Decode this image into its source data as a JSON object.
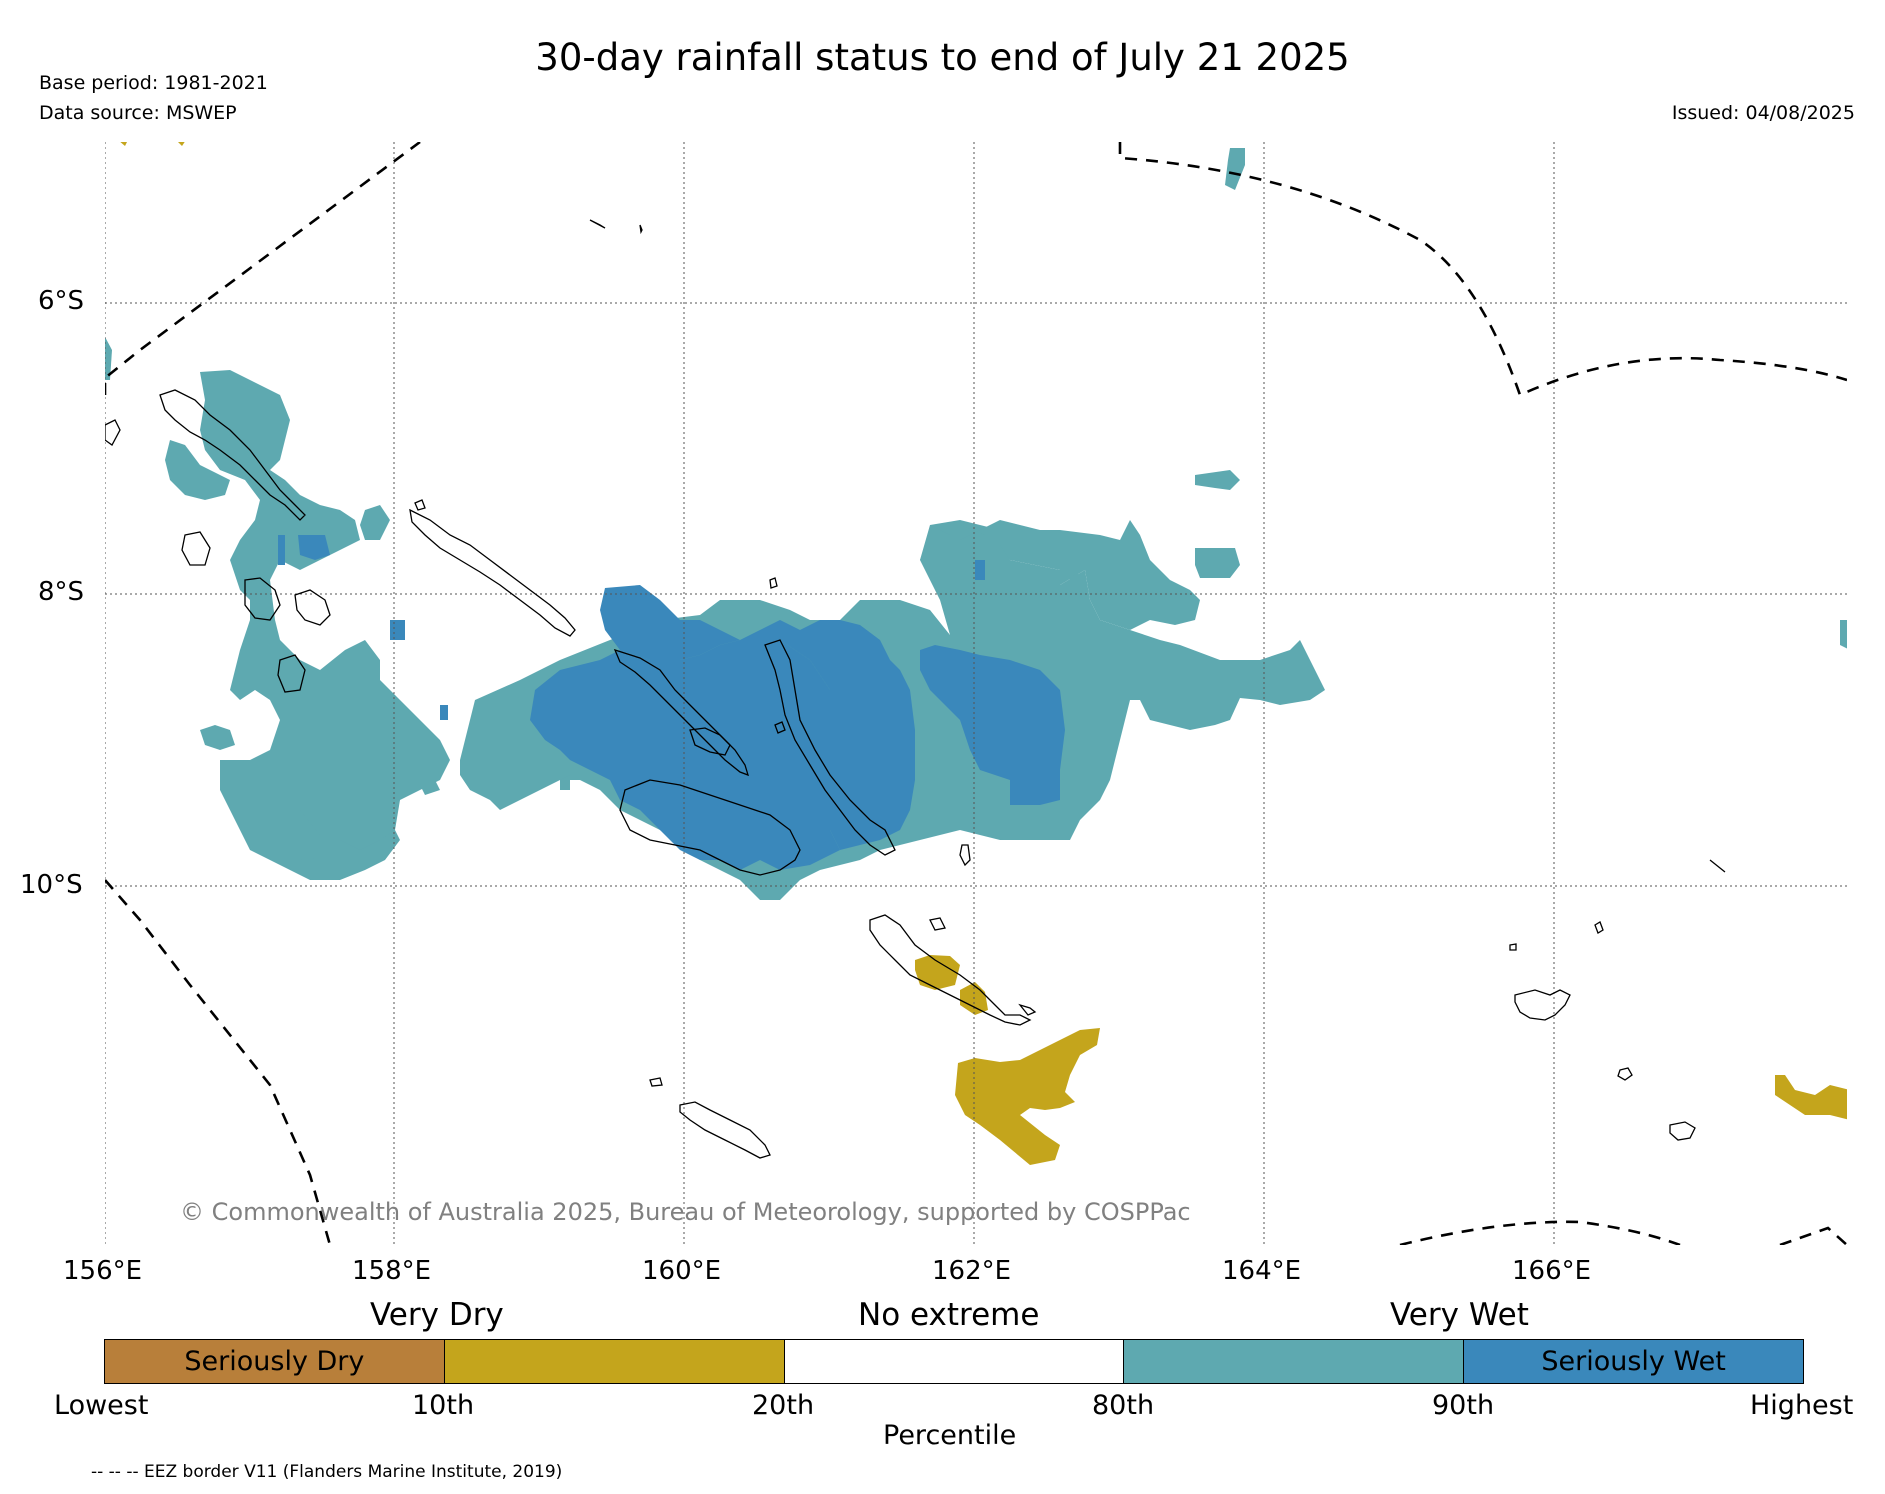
{
  "title": "30-day rainfall status to end of July 21 2025",
  "base_period": "Base period: 1981-2021",
  "data_source": "Data source: MSWEP",
  "issued": "Issued: 04/08/2025",
  "copyright": "© Commonwealth of Australia 2025, Bureau of Meteorology, supported by COSPPac",
  "footer": "-- -- -- EEZ border V11 (Flanders Marine Institute, 2019)",
  "axes": {
    "lat_labels": [
      "6°S",
      "8°S",
      "10°S"
    ],
    "lon_labels": [
      "156°E",
      "158°E",
      "160°E",
      "162°E",
      "164°E",
      "166°E"
    ]
  },
  "legend": {
    "groups": [
      "Very Dry",
      "No extreme",
      "Very Wet"
    ],
    "segments": [
      {
        "label": "Seriously Dry",
        "color": "#b87f3a"
      },
      {
        "label": "",
        "color": "#c4a51c"
      },
      {
        "label": "",
        "color": "#ffffff"
      },
      {
        "label": "",
        "color": "#5ea9b0"
      },
      {
        "label": "Seriously Wet",
        "color": "#3a88bb"
      }
    ],
    "ticks": [
      "Lowest",
      "10th",
      "20th",
      "80th",
      "90th",
      "Highest"
    ],
    "xlabel": "Percentile"
  },
  "colors": {
    "very_wet": "#5ea9b0",
    "seriously_wet": "#3a88bb",
    "very_dry": "#c4a51c",
    "seriously_dry": "#b87f3a"
  }
}
